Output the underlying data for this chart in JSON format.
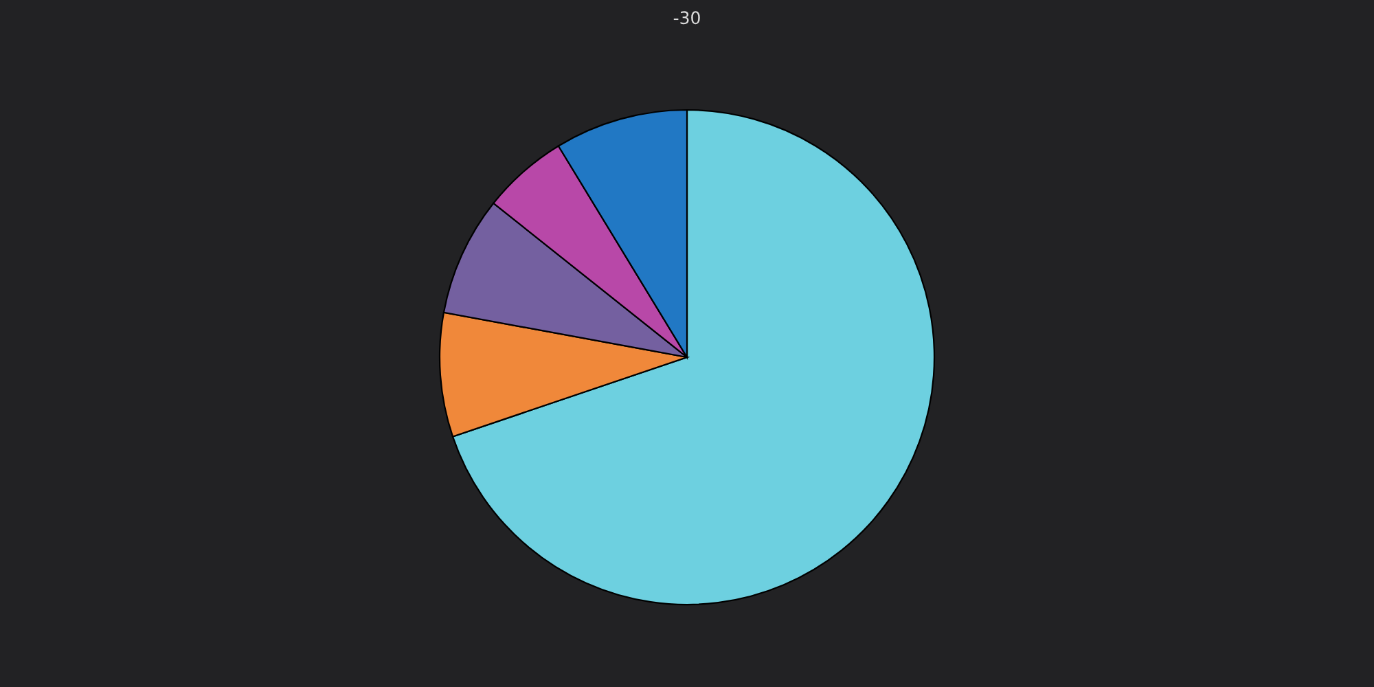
{
  "chart_data": {
    "type": "pie",
    "title": "-30",
    "categories": [
      null,
      null,
      null,
      null,
      null
    ],
    "values": [
      69.8,
      8.1,
      7.8,
      5.6,
      8.7
    ],
    "colors": [
      "#6dd0e0",
      "#f0883a",
      "#7460a0",
      "#b848a8",
      "#2178c4"
    ]
  }
}
